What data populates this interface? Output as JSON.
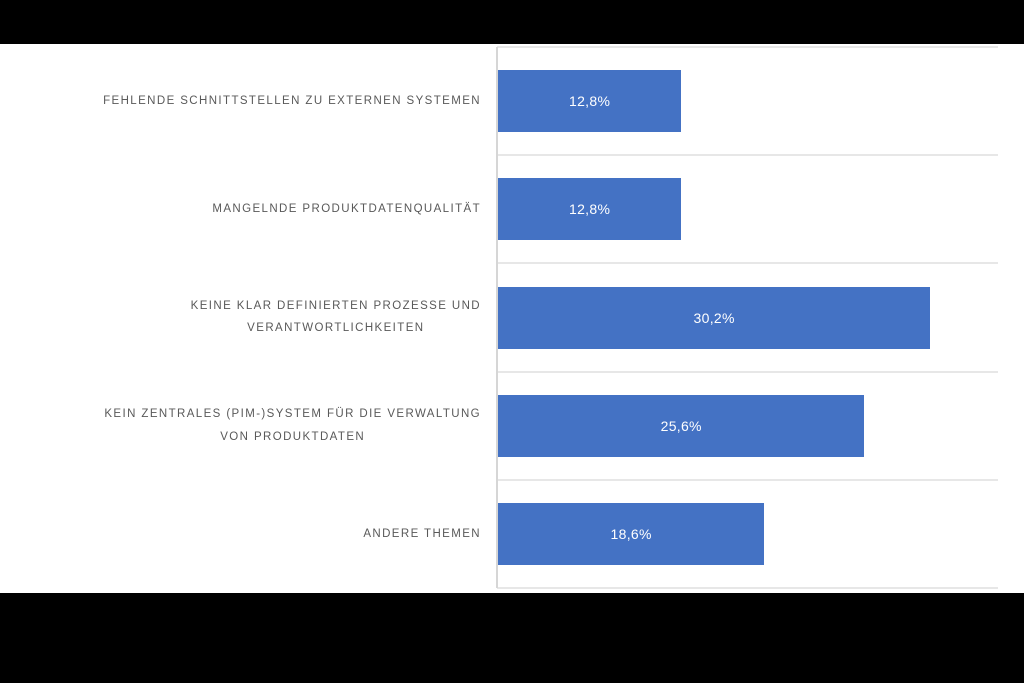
{
  "chart_data": {
    "type": "bar",
    "orientation": "horizontal",
    "title": "",
    "xlabel": "",
    "ylabel": "",
    "legend": "none",
    "grid": "horizontal category separator lines only; no value-axis ticks or labels visible",
    "xlim": [
      0,
      35
    ],
    "categories": [
      "FEHLENDE SCHNITTSTELLEN ZU EXTERNEN SYSTEMEN",
      "MANGELNDE PRODUKTDATENQUALITÄT",
      "KEINE KLAR DEFINIERTEN PROZESSE UND\nVERANTWORTLICHKEITEN",
      "KEIN ZENTRALES (PIM-)SYSTEM FÜR DIE VERWALTUNG\nVON PRODUKTDATEN",
      "ANDERE THEMEN"
    ],
    "values": [
      12.8,
      12.8,
      30.2,
      25.6,
      18.6
    ],
    "value_labels": [
      "12,8%",
      "12,8%",
      "30,2%",
      "25,6%",
      "18,6%"
    ],
    "colors": {
      "bar": "#4472C4",
      "value_label": "#FFFFFF",
      "category_label": "#595959",
      "gridline": "#E7E7E7",
      "axis_line": "#D6D6D6",
      "background": "#FFFFFF",
      "letterbox": "#000000"
    }
  }
}
